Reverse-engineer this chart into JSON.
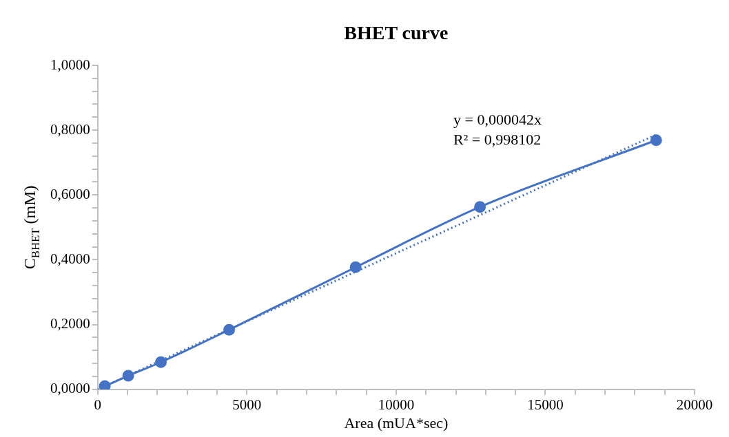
{
  "chart_data": {
    "type": "scatter",
    "title": "BHET curve",
    "xlabel": "Area (mUA*sec)",
    "ylabel": "C$_{BHET}$ (mM)",
    "series": [
      {
        "type": "line",
        "color": "#4472c4",
        "x": [
          240,
          1024,
          2119,
          4405,
          8643,
          12810,
          18714
        ],
        "values": [
          0.01,
          0.042,
          0.084,
          0.184,
          0.377,
          0.563,
          0.769
        ],
        "marker": "circle",
        "line_style": "solid"
      },
      {
        "type": "line",
        "color": "#4472c4",
        "x": [
          0,
          18714
        ],
        "values": [
          0,
          0.786
        ],
        "marker": "none",
        "line_style": "dotted"
      }
    ],
    "annotations": [
      "y = 0,000042x\nR² = 0,998102"
    ],
    "xlim": [
      0,
      20000
    ],
    "ylim": [
      0,
      1
    ],
    "xticks": [
      0,
      {
        "value": 1000,
        "label": null
      },
      {
        "value": 2000,
        "label": null
      },
      {
        "value": 3000,
        "label": null
      },
      {
        "value": 4000,
        "label": null
      },
      5000,
      {
        "value": 6000,
        "label": null
      },
      {
        "value": 7000,
        "label": null
      },
      {
        "value": 8000,
        "label": null
      },
      {
        "value": 9000,
        "label": null
      },
      10000,
      {
        "value": 11000,
        "label": null
      },
      {
        "value": 12000,
        "label": null
      },
      {
        "value": 13000,
        "label": null
      },
      {
        "value": 14000,
        "label": null
      },
      15000,
      {
        "value": 16000,
        "label": null
      },
      {
        "value": 17000,
        "label": null
      },
      {
        "value": 18000,
        "label": null
      },
      {
        "value": 19000,
        "label": null
      },
      20000
    ],
    "yticks": [
      {
        "value": 0,
        "label": "0,0000"
      },
      {
        "value": 0.04,
        "label": null
      },
      {
        "value": 0.08,
        "label": null
      },
      {
        "value": 0.12,
        "label": null
      },
      {
        "value": 0.16,
        "label": null
      },
      {
        "value": 0.2,
        "label": "0,2000"
      },
      {
        "value": 0.24,
        "label": null
      },
      {
        "value": 0.28,
        "label": null
      },
      {
        "value": 0.32,
        "label": null
      },
      {
        "value": 0.36,
        "label": null
      },
      {
        "value": 0.4,
        "label": "0,4000"
      },
      {
        "value": 0.44,
        "label": null
      },
      {
        "value": 0.48,
        "label": null
      },
      {
        "value": 0.52,
        "label": null
      },
      {
        "value": 0.56,
        "label": null
      },
      {
        "value": 0.6,
        "label": "0,6000"
      },
      {
        "value": 0.64,
        "label": null
      },
      {
        "value": 0.68,
        "label": null
      },
      {
        "value": 0.72,
        "label": null
      },
      {
        "value": 0.76,
        "label": null
      },
      {
        "value": 0.8,
        "label": "0,8000"
      },
      {
        "value": 0.84,
        "label": null
      },
      {
        "value": 0.88,
        "label": null
      },
      {
        "value": 0.92,
        "label": null
      },
      {
        "value": 0.96,
        "label": null
      },
      {
        "value": 1,
        "label": "1,0000"
      }
    ],
    "grid": false,
    "legend": false
  }
}
